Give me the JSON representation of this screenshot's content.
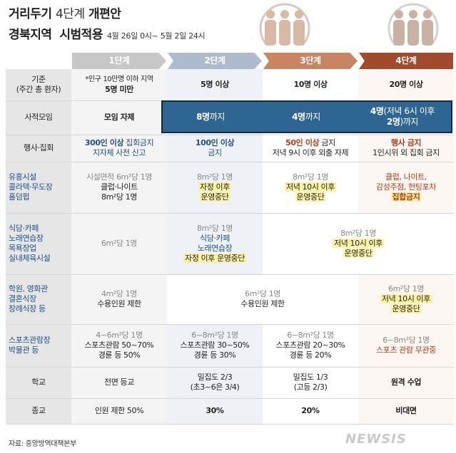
{
  "title": {
    "line1_a": "거리두기",
    "line1_b": "4단계",
    "line1_c": "개편안",
    "line2": "경북지역  시범적용",
    "period": "4월 26일 0시~ 5월 2일 24시"
  },
  "stages": [
    "1단계",
    "2단계",
    "3단계",
    "4단계"
  ],
  "colors": {
    "stage1": "#c7c7c7",
    "stage2": "#aebbcc",
    "stage3": "#c98561",
    "stage4": "#a34a2a",
    "gathering_bar": "#2e6592",
    "highlight": "#fdf3a4"
  },
  "rows": {
    "criteria": {
      "label1": "기준",
      "label2": "(주간 총 환자)",
      "s1_note": "*인구 10만명 이하 지역",
      "s1": "5명 미만",
      "s2": "5명 이상",
      "s3": "10명 이상",
      "s4": "20명 이상"
    },
    "gathering": {
      "label": "사적모임",
      "s1": "모임 자제",
      "s2_num": "8명",
      "s2_suffix": "까지",
      "s3_num": "4명",
      "s3_suffix": "까지",
      "s4_num": "4명",
      "s4_mid": "(저녁 6시 이후",
      "s4_num2": "2명",
      "s4_end": ")까지"
    },
    "events": {
      "label": "행사·집회",
      "s1_a": "300인 이상",
      "s1_b": " 집회금지",
      "s1_c": "지자체 사전 신고",
      "s2_a": "100인 이상",
      "s2_b": "금지",
      "s3_a": "50인 이상",
      "s3_b": " 금지",
      "s3_c": "저녁 9시 이후 외출 자제",
      "s4_a": "행사 금지",
      "s4_b": "1인시위 외 집회 금지"
    },
    "entertainment": {
      "label1": "유흥시설",
      "label2": "콜라텍·무도장",
      "label3": "홀덤펍",
      "s1_a": "시설면적 6m²당 1명",
      "s1_b": "클럽·나이트",
      "s1_c": "8m²당 1명",
      "s2_a": "8m²당 1명",
      "s2_b": "자정 이후",
      "s2_c": "운영중단",
      "s3_a": "8m²당 1명",
      "s3_b": "저녁 10시 이후",
      "s3_c": "운영중단",
      "s4_a": "클럽, 나이트,",
      "s4_b": "감성주점, 헌팅포차",
      "s4_c": "집합금지"
    },
    "restaurant": {
      "label1": "식당·카페",
      "label2": "노래연습장",
      "label3": "목욕장업",
      "label4": "실내체육시설",
      "s1": "6m²당 1명",
      "s2_a": "8m²당 1명",
      "s2_b": "식당·카페",
      "s2_c": "노래연습장",
      "s2_d": "자정 이후 운영중단",
      "s34_a": "8m²당 1명",
      "s34_b": "저녁 10시 이후",
      "s34_c": "운영중단"
    },
    "academy": {
      "label1": "학원, 영화관",
      "label2": "결혼식장",
      "label3": "장례식장 등",
      "s1_a": "4m²당 1명",
      "s1_b": "수용인원 제한",
      "s23_a": "6m²당 1명",
      "s23_b": "수용인원 제한",
      "s4_a": "6m²당 1명",
      "s4_b": "저녁 10시 이후",
      "s4_c": "운영중단"
    },
    "sports": {
      "label1": "스포츠관람장",
      "label2": "박물관 등",
      "s1_a": "4~6m²당 1명",
      "s1_b": "스포츠관람 50~70%",
      "s1_c": "경륜 등 50%",
      "s2_a": "6~8m²당 1명",
      "s2_b": "스포츠관람 30~50%",
      "s2_c": "경륜 등 30%",
      "s3_a": "6~8m²당 1명",
      "s3_b": "스포츠관람 20~30%",
      "s3_c": "경륜 등 20%",
      "s4_a": "6~8m²당 1명",
      "s4_b": "스포츠 관람 무관중"
    },
    "school": {
      "label": "학교",
      "s1": "전면 등교",
      "s2_a": "밀집도 2/3",
      "s2_b": "(초3~6은 3/4)",
      "s3_a": "밀집도 1/3",
      "s3_b": "(고등 2/3)",
      "s4": "원격 수업"
    },
    "religion": {
      "label": "종교",
      "s1": "인원 제한 50%",
      "s2": "30%",
      "s3": "20%",
      "s4": "비대면"
    }
  },
  "footer": {
    "source": "자료: 중앙방역대책본부",
    "logo": "NEWSIS"
  },
  "icons": [
    "person-icon",
    "person-icon",
    "person-icon"
  ]
}
